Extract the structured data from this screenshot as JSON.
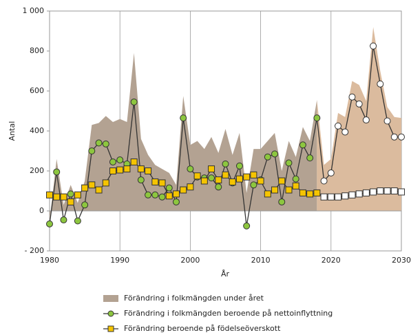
{
  "chart_data": {
    "type": "line",
    "x_label": "År",
    "y_label": "Antal",
    "x": [
      1980,
      1981,
      1982,
      1983,
      1984,
      1985,
      1986,
      1987,
      1988,
      1989,
      1990,
      1991,
      1992,
      1993,
      1994,
      1995,
      1996,
      1997,
      1998,
      1999,
      2000,
      2001,
      2002,
      2003,
      2004,
      2005,
      2006,
      2007,
      2008,
      2009,
      2010,
      2011,
      2012,
      2013,
      2014,
      2015,
      2016,
      2017,
      2018,
      2019,
      2020,
      2021,
      2022,
      2023,
      2024,
      2025,
      2026,
      2027,
      2028,
      2029,
      2030
    ],
    "forecast_start": 2018,
    "xlim": [
      1980,
      2030
    ],
    "xticks": [
      1980,
      1990,
      2000,
      2010,
      2020,
      2030
    ],
    "ylim": [
      -200,
      1000
    ],
    "yticks": [
      {
        "value": -200,
        "label": "- 200"
      },
      0,
      200,
      400,
      600,
      800,
      {
        "value": 1000,
        "label": "1 000"
      }
    ],
    "grid": true,
    "series": [
      {
        "name": "Förändring i folkmängden under året",
        "kind": "area",
        "color": "#b3a292",
        "forecast_color": "#dbbb9e",
        "values": [
          -50,
          260,
          30,
          130,
          40,
          150,
          430,
          440,
          475,
          445,
          460,
          445,
          790,
          360,
          280,
          230,
          210,
          190,
          130,
          575,
          330,
          350,
          310,
          370,
          290,
          410,
          280,
          390,
          90,
          310,
          310,
          350,
          390,
          200,
          350,
          270,
          420,
          350,
          555,
          230,
          260,
          490,
          470,
          650,
          630,
          550,
          920,
          700,
          520,
          470,
          465
        ]
      },
      {
        "name": "Förändring i folkmängden beroende på nettoinflyttning",
        "kind": "circle",
        "color": "#8dc63f",
        "forecast_color": "#ffffff",
        "values": [
          -65,
          195,
          -45,
          85,
          -50,
          30,
          300,
          340,
          335,
          245,
          255,
          235,
          545,
          155,
          80,
          80,
          70,
          115,
          45,
          465,
          210,
          170,
          165,
          165,
          120,
          235,
          140,
          225,
          -75,
          130,
          155,
          270,
          285,
          45,
          240,
          160,
          330,
          265,
          465,
          150,
          190,
          425,
          395,
          570,
          535,
          455,
          825,
          635,
          450,
          370,
          370
        ]
      },
      {
        "name": "Förändring beroende på födelseöverskott",
        "kind": "square",
        "color": "#f5c400",
        "forecast_color": "#ffffff",
        "values": [
          80,
          70,
          70,
          45,
          80,
          115,
          130,
          105,
          140,
          200,
          205,
          210,
          245,
          210,
          200,
          145,
          140,
          75,
          85,
          105,
          120,
          175,
          150,
          210,
          155,
          180,
          145,
          160,
          170,
          180,
          150,
          85,
          105,
          150,
          105,
          125,
          90,
          85,
          90,
          70,
          70,
          70,
          75,
          80,
          85,
          90,
          95,
          100,
          100,
          100,
          95
        ]
      }
    ]
  }
}
